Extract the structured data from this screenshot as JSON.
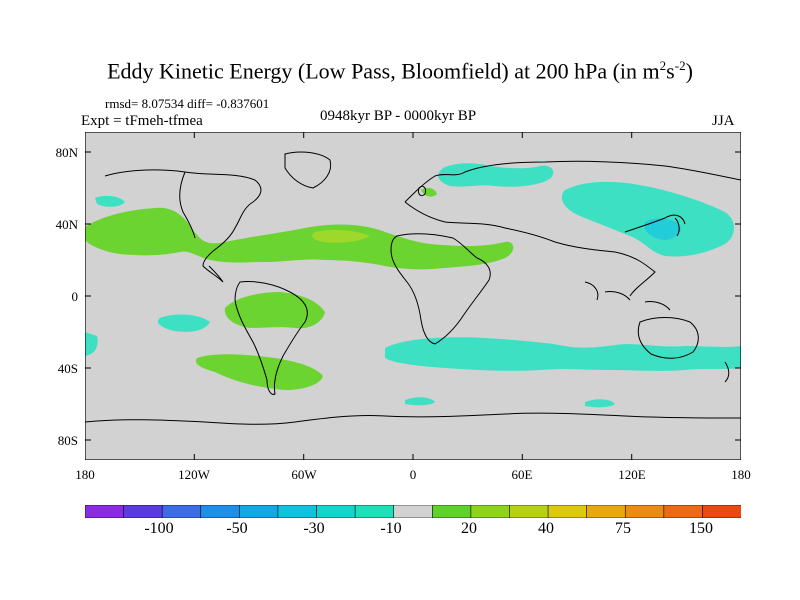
{
  "title": {
    "main": "Eddy Kinetic Energy (Low Pass, Bloomfield) at 200 hPa (in m",
    "sup1": "2",
    "mid": "s",
    "sup2": "-2",
    "end": ")"
  },
  "stats": "rmsd= 8.07534 diff= -0.837601",
  "experiment": "Expt = tFmeh-tfmea",
  "period": "0948kyr BP - 0000kyr BP",
  "season": "JJA",
  "lat_ticks": [
    "80N",
    "40N",
    "0",
    "40S",
    "80S"
  ],
  "lon_ticks": [
    "180",
    "120W",
    "60W",
    "0",
    "60E",
    "120E",
    "180"
  ],
  "colorbar": {
    "labels": [
      "-100",
      "-50",
      "-30",
      "-10",
      "20",
      "40",
      "75",
      "150"
    ],
    "colors": [
      "#8a2be2",
      "#5a3ce0",
      "#3c6ce6",
      "#1e8fe8",
      "#12a8e6",
      "#10c2de",
      "#14d4cc",
      "#1ee0b8",
      "#d2d2d2",
      "#5ed22a",
      "#8ed41a",
      "#b6d014",
      "#dcc80e",
      "#e8a810",
      "#ec8a14",
      "#ec6a16",
      "#e84a12"
    ]
  },
  "colors": {
    "land_background": "#d2d2d2",
    "positive_green": "#6cd430",
    "light_green": "#9ed82a",
    "cyan": "#3ee0c4",
    "blue_cyan": "#22ccd8"
  }
}
